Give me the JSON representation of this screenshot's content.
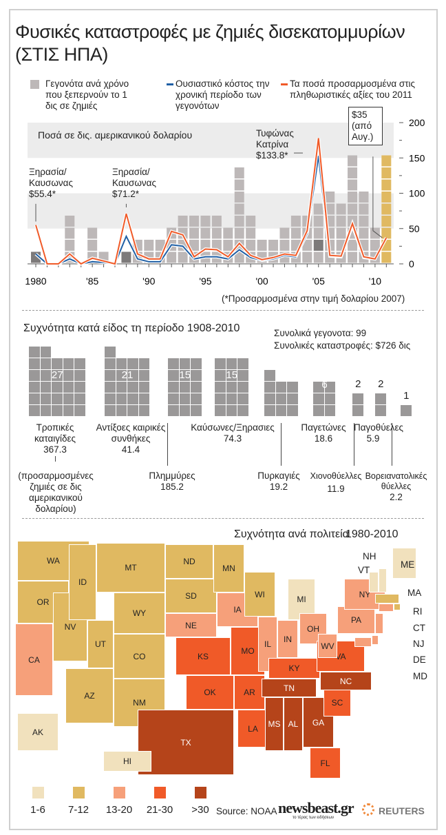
{
  "title": "Φυσικές καταστροφές με ζημιές δισεκατομμυρίων (ΣΤΙΣ ΗΠΑ)",
  "legend": {
    "events": "Γεγονότα ανά χρόνο που ξεπερνούν το 1 δις σε ζημιές",
    "actual": "Ουσιαστικό κόστος την χρονική περίοδο των γεγονότων",
    "adjusted": "Τα ποσά προσαρμοσμένα στις πληθωριστικές αξίες του 2011"
  },
  "colors": {
    "events": "#bdb8b8",
    "events_dark": "#7d7a7a",
    "actual": "#1f5fa5",
    "adjusted": "#f05a28",
    "events_2011": "#e0b961"
  },
  "chart_data": {
    "type": "bar+line",
    "ylabel": "Ποσά σε δις. αμερικανικού δολαρίου",
    "ylim": [
      0,
      200
    ],
    "yticks": [
      0,
      50,
      100,
      150,
      200
    ],
    "xticks": [
      "1980",
      "'85",
      "'90",
      "'95",
      "'00",
      "'05",
      "'10"
    ],
    "years": [
      1980,
      1981,
      1982,
      1983,
      1984,
      1985,
      1986,
      1987,
      1988,
      1989,
      1990,
      1991,
      1992,
      1993,
      1994,
      1995,
      1996,
      1997,
      1998,
      1999,
      2000,
      2001,
      2002,
      2003,
      2004,
      2005,
      2006,
      2007,
      2008,
      2009,
      2010,
      2011
    ],
    "event_counts": [
      1,
      0,
      0,
      4,
      0,
      3,
      1,
      0,
      1,
      2,
      2,
      2,
      3,
      4,
      4,
      4,
      4,
      3,
      8,
      4,
      2,
      2,
      3,
      4,
      4,
      5,
      6,
      5,
      9,
      6,
      3,
      9
    ],
    "series": [
      {
        "name": "Ουσιαστικό κόστος",
        "values": [
          14,
          0,
          0,
          7,
          0,
          3,
          2,
          0,
          39,
          7,
          3,
          3,
          27,
          25,
          7,
          10,
          10,
          7,
          20,
          9,
          5,
          7,
          12,
          10,
          43,
          153,
          11,
          10,
          54,
          9,
          7,
          null
        ]
      },
      {
        "name": "Τα ποσά προσαρμοσμένα",
        "values": [
          55,
          0,
          0,
          14,
          0,
          8,
          4,
          0,
          71,
          14,
          7,
          7,
          46,
          41,
          10,
          21,
          20,
          10,
          29,
          12,
          6,
          9,
          14,
          12,
          47,
          178,
          12,
          11,
          57,
          10,
          7,
          37
        ]
      }
    ],
    "annotations": [
      "Ξηρασία/ Καυσωνας $55.4*",
      "Ξηρασία/ Καυσωνας $71.2*",
      "Τυφώνας Κατρίνα $133.8*",
      "$35 (από Αυγ.)"
    ],
    "note": "(*Προσαρμοσμένα στην τιμή δολαρίου 2007)"
  },
  "by_type": {
    "title": "Συχνότητα κατά είδος τη περίοδο 1908-2010",
    "total_events": "Συνολικά γεγονοτα: 99",
    "total_damage": "Συνολικές καταστροφές: $726 δις",
    "unit_note": "(προσαρμοσμένες ζημιές σε δις αμερικανικού δολαρίου)",
    "items": [
      {
        "label": "Τροπικές καταιγίδες",
        "count": 27,
        "damage": "367.3"
      },
      {
        "label": "Αντίξοες καιρικές συνθήκες",
        "count": 21,
        "damage": "41.4"
      },
      {
        "label": "Πλημμύρες",
        "count": 15,
        "damage": "185.2"
      },
      {
        "label": "Καύσωνες/Ξηρασιες",
        "count": 15,
        "damage": "74.3"
      },
      {
        "label": "Πυρκαγιές",
        "count": 10,
        "damage": "19.2"
      },
      {
        "label": "Παγετώνες",
        "count": 6,
        "damage": "18.6"
      },
      {
        "label": "Χιονοθύελλες",
        "count": 2,
        "damage": "11.9"
      },
      {
        "label": "Παγοθύελες",
        "count": 2,
        "damage": "5.9"
      },
      {
        "label": "Βορειανατολικές θύελλες",
        "count": 1,
        "damage": "2.2"
      }
    ]
  },
  "map": {
    "title": "Συχνότητα ανά πολιτεία",
    "period": "1980-2010",
    "legend": [
      {
        "label": "1-6",
        "color": "#f1e1bd"
      },
      {
        "label": "7-12",
        "color": "#e0b961"
      },
      {
        "label": "13-20",
        "color": "#f6a07a"
      },
      {
        "label": "21-30",
        "color": "#f05a28"
      },
      {
        "label": ">30",
        "color": "#b5441a"
      }
    ],
    "states": {
      "WA": 2,
      "OR": 2,
      "CA": 3,
      "NV": 2,
      "ID": 2,
      "MT": 2,
      "WY": 2,
      "UT": 2,
      "CO": 2,
      "AZ": 2,
      "NM": 2,
      "ND": 2,
      "SD": 2,
      "NE": 3,
      "KS": 4,
      "OK": 4,
      "TX": 5,
      "MN": 2,
      "IA": 3,
      "MO": 4,
      "AR": 4,
      "LA": 4,
      "WI": 2,
      "IL": 3,
      "MI": 1,
      "IN": 3,
      "OH": 3,
      "KY": 4,
      "TN": 5,
      "MS": 5,
      "AL": 5,
      "GA": 5,
      "FL": 4,
      "SC": 4,
      "NC": 5,
      "VA": 4,
      "WV": 3,
      "PA": 3,
      "NY": 3,
      "ME": 1,
      "NH": 1,
      "VT": 1,
      "MA": 2,
      "RI": 2,
      "CT": 3,
      "NJ": 3,
      "DE": 3,
      "MD": 3,
      "AK": 1,
      "HI": 1
    }
  },
  "footer": {
    "source": "Source: NOAA",
    "brand": "newsbeast.gr",
    "brand_tagline": "το τέρας των ειδήσεων",
    "agency": "REUTERS"
  }
}
